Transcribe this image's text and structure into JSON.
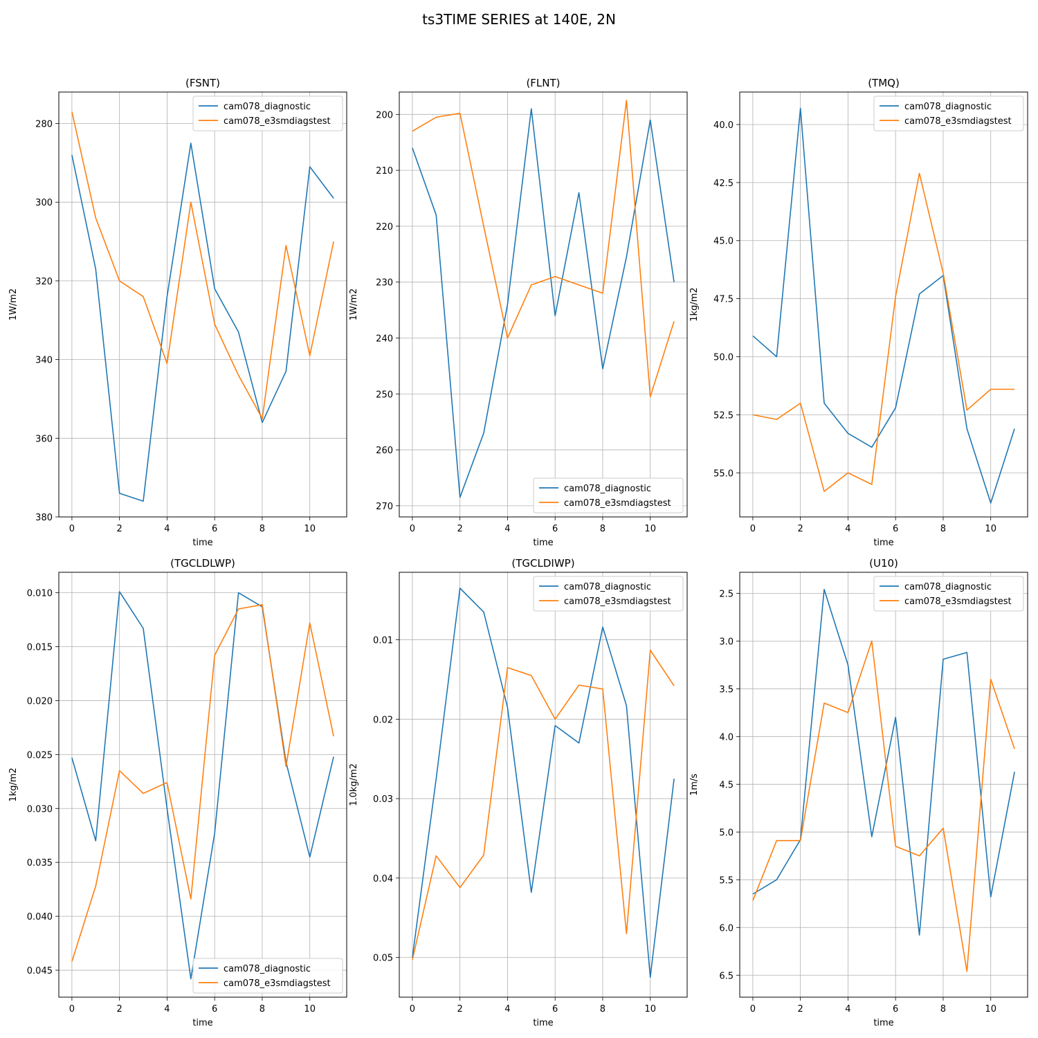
{
  "figure": {
    "title": "ts3TIME SERIES at 140E, 2N",
    "series_colors": {
      "cam078_diagnostic": "#1f77b4",
      "cam078_e3smdiagstest": "#ff7f0e"
    },
    "grid": true
  },
  "chart_data": [
    {
      "type": "line",
      "title": "(FSNT)",
      "xlabel": "time",
      "ylabel": "1W/m2",
      "ylim": [
        380,
        272
      ],
      "y_inverted": true,
      "xlim": [
        -0.55,
        11.55
      ],
      "xticks": [
        0,
        2,
        4,
        6,
        8,
        10
      ],
      "yticks": [
        280,
        300,
        320,
        340,
        360,
        380
      ],
      "ytick_labels": [
        "280",
        "300",
        "320",
        "340",
        "360",
        "380"
      ],
      "legend": "upper right",
      "x": [
        0,
        1,
        2,
        3,
        4,
        5,
        6,
        7,
        8,
        9,
        10,
        11
      ],
      "series": [
        {
          "name": "cam078_diagnostic",
          "values": [
            288,
            317,
            374,
            376,
            324,
            285,
            322,
            333,
            356,
            343,
            291,
            299
          ]
        },
        {
          "name": "cam078_e3smdiagstest",
          "values": [
            277,
            304,
            320,
            324,
            341,
            300,
            331,
            344,
            355,
            311,
            339,
            310
          ]
        }
      ]
    },
    {
      "type": "line",
      "title": "(FLNT)",
      "xlabel": "time",
      "ylabel": "1W/m2",
      "ylim": [
        272,
        196
      ],
      "y_inverted": true,
      "xlim": [
        -0.55,
        11.55
      ],
      "xticks": [
        0,
        2,
        4,
        6,
        8,
        10
      ],
      "yticks": [
        200,
        210,
        220,
        230,
        240,
        250,
        260,
        270
      ],
      "ytick_labels": [
        "200",
        "210",
        "220",
        "230",
        "240",
        "250",
        "260",
        "270"
      ],
      "legend": "lower right",
      "x": [
        0,
        1,
        2,
        3,
        4,
        5,
        6,
        7,
        8,
        9,
        10,
        11
      ],
      "series": [
        {
          "name": "cam078_diagnostic",
          "values": [
            206,
            218,
            268.5,
            257,
            234,
            199,
            236,
            214,
            245.5,
            225.5,
            201,
            230
          ]
        },
        {
          "name": "cam078_e3smdiagstest",
          "values": [
            203,
            200.5,
            199.8,
            220,
            240,
            230.5,
            229,
            230.5,
            232,
            197.5,
            250.5,
            237
          ]
        }
      ]
    },
    {
      "type": "line",
      "title": "(TMQ)",
      "xlabel": "time",
      "ylabel": "1kg/m2",
      "ylim": [
        56.9,
        38.6
      ],
      "y_inverted": true,
      "xlim": [
        -0.55,
        11.55
      ],
      "xticks": [
        0,
        2,
        4,
        6,
        8,
        10
      ],
      "yticks": [
        40.0,
        42.5,
        45.0,
        47.5,
        50.0,
        52.5,
        55.0
      ],
      "ytick_labels": [
        "40.0",
        "42.5",
        "45.0",
        "47.5",
        "50.0",
        "52.5",
        "55.0"
      ],
      "legend": "upper right",
      "x": [
        0,
        1,
        2,
        3,
        4,
        5,
        6,
        7,
        8,
        9,
        10,
        11
      ],
      "series": [
        {
          "name": "cam078_diagnostic",
          "values": [
            49.1,
            50.0,
            39.3,
            52.0,
            53.3,
            53.9,
            52.2,
            47.3,
            46.5,
            53.1,
            56.3,
            53.1
          ]
        },
        {
          "name": "cam078_e3smdiagstest",
          "values": [
            52.5,
            52.7,
            52.0,
            55.8,
            55.0,
            55.5,
            47.4,
            42.1,
            46.4,
            52.3,
            51.4,
            51.4
          ]
        }
      ]
    },
    {
      "type": "line",
      "title": "(TGCLDLWP)",
      "xlabel": "time",
      "ylabel": "1kg/m2",
      "ylim": [
        0.0475,
        0.0081
      ],
      "y_inverted": true,
      "xlim": [
        -0.55,
        11.55
      ],
      "xticks": [
        0,
        2,
        4,
        6,
        8,
        10
      ],
      "yticks": [
        0.01,
        0.015,
        0.02,
        0.025,
        0.03,
        0.035,
        0.04,
        0.045
      ],
      "ytick_labels": [
        "0.010",
        "0.015",
        "0.020",
        "0.025",
        "0.030",
        "0.035",
        "0.040",
        "0.045"
      ],
      "legend": "lower right",
      "x": [
        0,
        1,
        2,
        3,
        4,
        5,
        6,
        7,
        8,
        9,
        10,
        11
      ],
      "series": [
        {
          "name": "cam078_diagnostic",
          "values": [
            0.0253,
            0.033,
            0.0099,
            0.0133,
            0.03,
            0.0458,
            0.0323,
            0.01,
            0.0113,
            0.0257,
            0.0345,
            0.0252
          ]
        },
        {
          "name": "cam078_e3smdiagstest",
          "values": [
            0.0442,
            0.0372,
            0.0265,
            0.0286,
            0.0276,
            0.0384,
            0.0158,
            0.0115,
            0.0111,
            0.0261,
            0.0128,
            0.0233
          ]
        }
      ]
    },
    {
      "type": "line",
      "title": "(TGCLDIWP)",
      "xlabel": "time",
      "ylabel": "1.0kg/m2",
      "ylim": [
        0.055,
        0.0015
      ],
      "y_inverted": true,
      "xlim": [
        -0.55,
        11.55
      ],
      "xticks": [
        0,
        2,
        4,
        6,
        8,
        10
      ],
      "yticks": [
        0.01,
        0.02,
        0.03,
        0.04,
        0.05
      ],
      "ytick_labels": [
        "0.01",
        "0.02",
        "0.03",
        "0.04",
        "0.05"
      ],
      "legend": "upper right",
      "x": [
        0,
        1,
        2,
        3,
        4,
        5,
        6,
        7,
        8,
        9,
        10,
        11
      ],
      "series": [
        {
          "name": "cam078_diagnostic",
          "values": [
            0.05,
            0.0275,
            0.0035,
            0.0065,
            0.0185,
            0.0418,
            0.0208,
            0.023,
            0.0084,
            0.0183,
            0.0525,
            0.0275
          ]
        },
        {
          "name": "cam078_e3smdiagstest",
          "values": [
            0.0503,
            0.0372,
            0.0412,
            0.0371,
            0.0135,
            0.0145,
            0.02,
            0.0157,
            0.0162,
            0.047,
            0.0113,
            0.0158
          ]
        }
      ]
    },
    {
      "type": "line",
      "title": "(U10)",
      "xlabel": "time",
      "ylabel": "1m/s",
      "ylim": [
        6.73,
        2.28
      ],
      "y_inverted": true,
      "xlim": [
        -0.55,
        11.55
      ],
      "xticks": [
        0,
        2,
        4,
        6,
        8,
        10
      ],
      "yticks": [
        2.5,
        3.0,
        3.5,
        4.0,
        4.5,
        5.0,
        5.5,
        6.0,
        6.5
      ],
      "ytick_labels": [
        "2.5",
        "3.0",
        "3.5",
        "4.0",
        "4.5",
        "5.0",
        "5.5",
        "6.0",
        "6.5"
      ],
      "legend": "upper right",
      "x": [
        0,
        1,
        2,
        3,
        4,
        5,
        6,
        7,
        8,
        9,
        10,
        11
      ],
      "series": [
        {
          "name": "cam078_diagnostic",
          "values": [
            5.65,
            5.5,
            5.08,
            2.46,
            3.25,
            5.05,
            3.8,
            6.08,
            3.19,
            3.12,
            5.68,
            4.37
          ]
        },
        {
          "name": "cam078_e3smdiagstest",
          "values": [
            5.72,
            5.09,
            5.09,
            3.65,
            3.75,
            3.0,
            5.15,
            5.25,
            4.96,
            6.46,
            3.4,
            4.13
          ]
        }
      ]
    }
  ]
}
